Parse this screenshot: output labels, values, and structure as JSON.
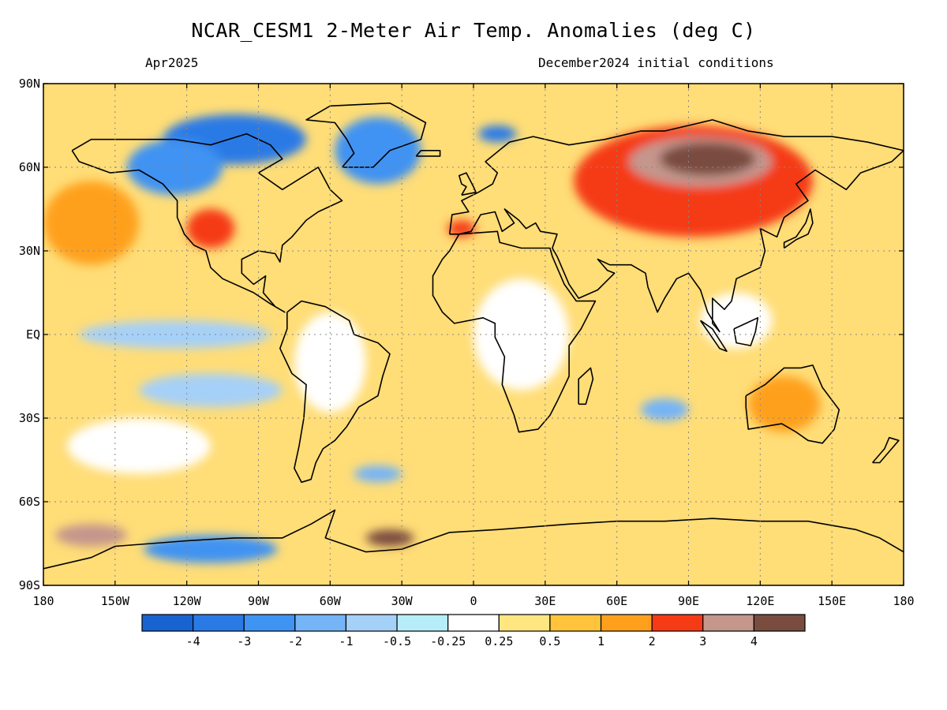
{
  "header": {
    "title": "NCAR_CESM1 2-Meter Air Temp. Anomalies (deg C)",
    "valid_month": "Apr2025",
    "init": "December2024 initial conditions"
  },
  "map": {
    "projection": "equirectangular",
    "lon_range": [
      -180,
      180
    ],
    "lat_range": [
      -90,
      90
    ],
    "lat_ticks": [
      {
        "lat": 90,
        "label": "90N"
      },
      {
        "lat": 60,
        "label": "60N"
      },
      {
        "lat": 30,
        "label": "30N"
      },
      {
        "lat": 0,
        "label": "EQ"
      },
      {
        "lat": -30,
        "label": "30S"
      },
      {
        "lat": -60,
        "label": "60S"
      },
      {
        "lat": -90,
        "label": "90S"
      }
    ],
    "lon_ticks": [
      {
        "lon": -180,
        "label": "180"
      },
      {
        "lon": -150,
        "label": "150W"
      },
      {
        "lon": -120,
        "label": "120W"
      },
      {
        "lon": -90,
        "label": "90W"
      },
      {
        "lon": -60,
        "label": "60W"
      },
      {
        "lon": -30,
        "label": "30W"
      },
      {
        "lon": 0,
        "label": "0"
      },
      {
        "lon": 30,
        "label": "30E"
      },
      {
        "lon": 60,
        "label": "60E"
      },
      {
        "lon": 90,
        "label": "90E"
      },
      {
        "lon": 120,
        "label": "120E"
      },
      {
        "lon": 150,
        "label": "150E"
      },
      {
        "lon": 180,
        "label": "180"
      }
    ],
    "gridlines": "dotted",
    "background_color": "#ffdd77"
  },
  "colorbar": {
    "colors": [
      "#1963d0",
      "#2a7ae6",
      "#3f93f2",
      "#74b4f7",
      "#a5d0f8",
      "#b6edf8",
      "#ffffff",
      "#ffe680",
      "#ffc43c",
      "#ffa01c",
      "#f53a16",
      "#c4968c",
      "#7a4c40"
    ],
    "labels": [
      "-4",
      "-3",
      "-2",
      "-1",
      "-0.5",
      "-0.25",
      "0.25",
      "0.5",
      "1",
      "2",
      "3",
      "4"
    ]
  },
  "anomaly_regions": [
    {
      "name": "siberia",
      "level": 3,
      "lon": 92,
      "lat": 55,
      "rx": 50,
      "ry": 20
    },
    {
      "name": "siberia-core",
      "level": 4,
      "lon": 95,
      "lat": 62,
      "rx": 30,
      "ry": 9
    },
    {
      "name": "siberia-center",
      "level": 5,
      "lon": 98,
      "lat": 63,
      "rx": 20,
      "ry": 6
    },
    {
      "name": "canada-arctic",
      "level": -3,
      "lon": -100,
      "lat": 70,
      "rx": 30,
      "ry": 9
    },
    {
      "name": "canada-west",
      "level": -2,
      "lon": -125,
      "lat": 60,
      "rx": 20,
      "ry": 10
    },
    {
      "name": "greenland",
      "level": -2,
      "lon": -40,
      "lat": 66,
      "rx": 18,
      "ry": 12
    },
    {
      "name": "barents",
      "level": -3,
      "lon": 10,
      "lat": 72,
      "rx": 8,
      "ry": 3
    },
    {
      "name": "us-southwest",
      "level": 3,
      "lon": -110,
      "lat": 38,
      "rx": 10,
      "ry": 7
    },
    {
      "name": "iberia",
      "level": 3,
      "lon": -5,
      "lat": 38,
      "rx": 6,
      "ry": 3
    },
    {
      "name": "antarctic-pac",
      "level": 4,
      "lon": -160,
      "lat": -72,
      "rx": 15,
      "ry": 4
    },
    {
      "name": "weddell",
      "level": 5,
      "lon": -35,
      "lat": -73,
      "rx": 10,
      "ry": 3
    },
    {
      "name": "amundsen",
      "level": -2,
      "lon": -110,
      "lat": -77,
      "rx": 28,
      "ry": 5
    },
    {
      "name": "indian-ocean",
      "level": -1,
      "lon": 80,
      "lat": -27,
      "rx": 10,
      "ry": 4
    },
    {
      "name": "s-atlantic",
      "level": -1,
      "lon": -40,
      "lat": -50,
      "rx": 10,
      "ry": 3
    },
    {
      "name": "tropical-pac",
      "level": -0.5,
      "lon": -125,
      "lat": 0,
      "rx": 40,
      "ry": 5
    },
    {
      "name": "south-pac",
      "level": -0.5,
      "lon": -110,
      "lat": -20,
      "rx": 30,
      "ry": 6
    },
    {
      "name": "africa",
      "level": 0,
      "lon": 20,
      "lat": 0,
      "rx": 20,
      "ry": 20
    },
    {
      "name": "south-america",
      "level": 0,
      "lon": -60,
      "lat": -10,
      "rx": 15,
      "ry": 18
    },
    {
      "name": "w-indo",
      "level": 0,
      "lon": 110,
      "lat": 5,
      "rx": 15,
      "ry": 10
    },
    {
      "name": "e-pacific-s",
      "level": 0,
      "lon": -140,
      "lat": -40,
      "rx": 30,
      "ry": 10
    },
    {
      "name": "n-pacific",
      "level": 2,
      "lon": -160,
      "lat": 40,
      "rx": 20,
      "ry": 15
    },
    {
      "name": "australia",
      "level": 2,
      "lon": 130,
      "lat": -25,
      "rx": 15,
      "ry": 10
    }
  ]
}
